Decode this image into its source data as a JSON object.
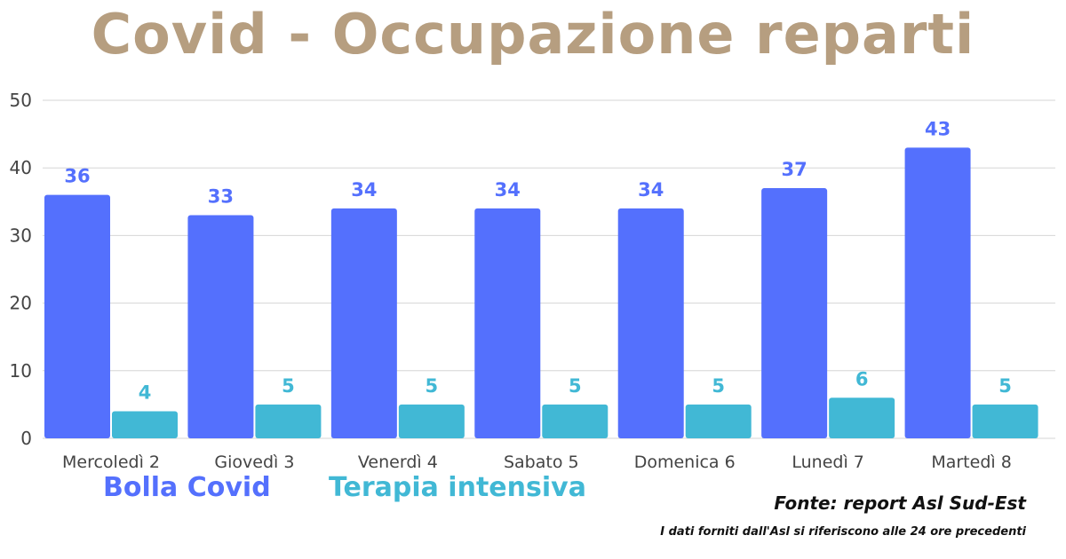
{
  "colors": {
    "title": "#b69e80",
    "series1": "#5470fd",
    "series2": "#41b8d5",
    "grid": "#d6d6d6",
    "axis_text": "#444444"
  },
  "chart_data": {
    "type": "bar",
    "title": "Covid - Occupazione reparti",
    "categories": [
      "Mercoledì 2",
      "Giovedì 3",
      "Venerdì 4",
      "Sabato 5",
      "Domenica 6",
      "Lunedì 7",
      "Martedì 8"
    ],
    "series": [
      {
        "name": "Bolla Covid",
        "values": [
          36,
          33,
          34,
          34,
          34,
          37,
          43
        ]
      },
      {
        "name": "Terapia intensiva",
        "values": [
          4,
          5,
          5,
          5,
          5,
          6,
          5
        ]
      }
    ],
    "ylim": [
      0,
      50
    ],
    "yticks": [
      0,
      10,
      20,
      30,
      40,
      50
    ],
    "grid": true,
    "legend": "bottom-left",
    "data_labels": true
  },
  "footer": {
    "source": "Fonte: report Asl Sud-Est",
    "note": "I dati forniti dall'Asl si riferiscono alle 24 ore precedenti"
  }
}
